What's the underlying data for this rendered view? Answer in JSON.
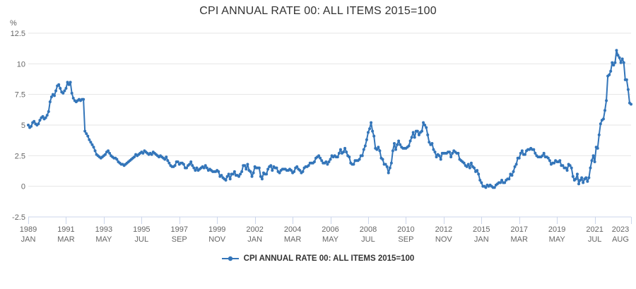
{
  "title": "CPI ANNUAL RATE 00: ALL ITEMS 2015=100",
  "legend": {
    "label": "CPI ANNUAL RATE 00: ALL ITEMS 2015=100"
  },
  "colors": {
    "series": "#3375b9",
    "grid": "#e6e6e6",
    "axis": "#ccd6eb",
    "label": "#666666",
    "title": "#333333",
    "legend_text": "#333333"
  },
  "chart_data": {
    "type": "line",
    "title": "CPI ANNUAL RATE 00: ALL ITEMS 2015=100",
    "xlabel": "",
    "ylabel": "%",
    "unit": "%",
    "ylim": [
      -2.5,
      12.5
    ],
    "ytick_step": 2.5,
    "yticks": [
      12.5,
      10,
      7.5,
      5,
      2.5,
      0,
      -2.5
    ],
    "grid": "horizontal-only",
    "legend_position": "bottom",
    "frequency": "monthly",
    "start": "1989 JAN",
    "end": "2023 AUG",
    "xticks": [
      {
        "year": "1989",
        "month": "JAN",
        "index": 0
      },
      {
        "year": "1991",
        "month": "MAR",
        "index": 26
      },
      {
        "year": "1993",
        "month": "MAY",
        "index": 52
      },
      {
        "year": "1995",
        "month": "JUL",
        "index": 78
      },
      {
        "year": "1997",
        "month": "SEP",
        "index": 104
      },
      {
        "year": "1999",
        "month": "NOV",
        "index": 130
      },
      {
        "year": "2002",
        "month": "JAN",
        "index": 156
      },
      {
        "year": "2004",
        "month": "MAR",
        "index": 182
      },
      {
        "year": "2006",
        "month": "MAY",
        "index": 208
      },
      {
        "year": "2008",
        "month": "JUL",
        "index": 234
      },
      {
        "year": "2010",
        "month": "SEP",
        "index": 260
      },
      {
        "year": "2012",
        "month": "NOV",
        "index": 286
      },
      {
        "year": "2015",
        "month": "JAN",
        "index": 312
      },
      {
        "year": "2017",
        "month": "MAR",
        "index": 338
      },
      {
        "year": "2019",
        "month": "MAY",
        "index": 364
      },
      {
        "year": "2021",
        "month": "JUL",
        "index": 390
      },
      {
        "year": "2023",
        "month": "AUG",
        "index": 415
      }
    ],
    "series": [
      {
        "name": "CPI ANNUAL RATE 00: ALL ITEMS 2015=100",
        "values": [
          5.0,
          4.8,
          4.9,
          5.2,
          5.3,
          5.1,
          5.0,
          5.1,
          5.4,
          5.6,
          5.7,
          5.5,
          5.6,
          5.8,
          6.1,
          6.9,
          7.3,
          7.5,
          7.4,
          7.8,
          8.2,
          8.3,
          8.0,
          7.7,
          7.6,
          7.8,
          8.0,
          8.5,
          8.3,
          8.5,
          7.6,
          7.2,
          7.0,
          6.9,
          7.0,
          7.1,
          7.0,
          7.1,
          7.1,
          4.5,
          4.3,
          4.1,
          3.8,
          3.6,
          3.4,
          3.2,
          2.9,
          2.6,
          2.5,
          2.4,
          2.3,
          2.4,
          2.5,
          2.6,
          2.8,
          2.9,
          2.7,
          2.5,
          2.4,
          2.3,
          2.3,
          2.2,
          2.0,
          1.9,
          1.8,
          1.8,
          1.7,
          1.8,
          1.9,
          2.0,
          2.1,
          2.2,
          2.3,
          2.4,
          2.6,
          2.5,
          2.6,
          2.7,
          2.8,
          2.7,
          2.9,
          2.8,
          2.7,
          2.6,
          2.7,
          2.6,
          2.8,
          2.7,
          2.6,
          2.5,
          2.4,
          2.5,
          2.4,
          2.3,
          2.2,
          2.4,
          2.1,
          1.9,
          1.7,
          1.6,
          1.6,
          1.7,
          2.0,
          2.0,
          1.8,
          1.9,
          1.9,
          1.8,
          1.5,
          1.5,
          1.7,
          1.8,
          2.0,
          1.7,
          1.5,
          1.3,
          1.5,
          1.3,
          1.4,
          1.5,
          1.6,
          1.5,
          1.7,
          1.5,
          1.3,
          1.4,
          1.3,
          1.2,
          1.2,
          1.2,
          1.3,
          1.2,
          0.8,
          0.9,
          0.7,
          0.6,
          0.5,
          0.8,
          1.0,
          0.6,
          1.0,
          1.0,
          1.2,
          0.9,
          0.9,
          0.8,
          1.0,
          1.2,
          1.7,
          1.7,
          1.4,
          1.8,
          1.3,
          1.2,
          0.8,
          1.1,
          1.6,
          1.5,
          1.5,
          1.5,
          0.8,
          0.6,
          1.1,
          1.0,
          1.0,
          1.4,
          1.6,
          1.7,
          1.3,
          1.6,
          1.5,
          1.5,
          1.2,
          1.1,
          1.3,
          1.4,
          1.4,
          1.4,
          1.3,
          1.3,
          1.4,
          1.3,
          1.1,
          1.2,
          1.5,
          1.6,
          1.4,
          1.3,
          1.1,
          1.2,
          1.5,
          1.6,
          1.6,
          1.7,
          1.9,
          1.9,
          1.9,
          2.0,
          2.3,
          2.4,
          2.5,
          2.3,
          2.1,
          1.9,
          1.9,
          2.0,
          1.8,
          2.0,
          2.2,
          2.5,
          2.4,
          2.5,
          2.4,
          2.4,
          2.7,
          3.0,
          2.7,
          2.8,
          3.1,
          2.8,
          2.5,
          2.4,
          1.9,
          1.8,
          1.8,
          2.1,
          2.1,
          2.1,
          2.2,
          2.5,
          2.5,
          3.0,
          3.3,
          3.8,
          4.4,
          4.7,
          5.2,
          4.5,
          4.1,
          3.1,
          3.0,
          3.2,
          2.9,
          2.3,
          2.2,
          1.8,
          1.8,
          1.6,
          1.1,
          1.5,
          1.9,
          2.9,
          3.5,
          3.0,
          3.4,
          3.7,
          3.4,
          3.2,
          3.1,
          3.1,
          3.1,
          3.2,
          3.3,
          3.7,
          4.0,
          4.4,
          4.0,
          4.5,
          4.5,
          4.2,
          4.4,
          4.5,
          5.2,
          5.0,
          4.8,
          4.2,
          3.6,
          3.4,
          3.5,
          3.0,
          2.8,
          2.4,
          2.6,
          2.5,
          2.2,
          2.7,
          2.7,
          2.7,
          2.7,
          2.8,
          2.8,
          2.4,
          2.7,
          2.9,
          2.8,
          2.7,
          2.7,
          2.2,
          2.1,
          2.0,
          1.9,
          1.7,
          1.6,
          1.8,
          1.5,
          1.9,
          1.6,
          1.5,
          1.2,
          1.3,
          1.0,
          0.5,
          0.3,
          0.0,
          0.0,
          -0.1,
          0.1,
          0.0,
          0.1,
          0.0,
          -0.1,
          -0.1,
          0.1,
          0.2,
          0.3,
          0.3,
          0.5,
          0.3,
          0.3,
          0.5,
          0.6,
          0.6,
          1.0,
          0.9,
          1.2,
          1.6,
          1.8,
          2.3,
          2.3,
          2.7,
          2.9,
          2.6,
          2.6,
          2.9,
          3.0,
          3.0,
          3.1,
          3.0,
          3.0,
          2.7,
          2.5,
          2.4,
          2.4,
          2.4,
          2.5,
          2.7,
          2.4,
          2.4,
          2.3,
          2.1,
          1.8,
          1.9,
          1.9,
          2.1,
          2.0,
          2.0,
          2.1,
          1.7,
          1.7,
          1.5,
          1.5,
          1.3,
          1.8,
          1.7,
          1.5,
          0.8,
          0.5,
          0.6,
          1.0,
          0.2,
          0.5,
          0.7,
          0.3,
          0.6,
          0.7,
          0.4,
          0.7,
          1.5,
          2.1,
          2.5,
          2.0,
          3.2,
          3.1,
          4.2,
          5.1,
          5.4,
          5.5,
          6.2,
          7.0,
          9.0,
          9.1,
          9.4,
          10.1,
          9.9,
          10.1,
          11.1,
          10.7,
          10.5,
          10.1,
          10.4,
          10.1,
          8.7,
          8.7,
          7.9,
          6.8,
          6.7
        ]
      }
    ]
  }
}
